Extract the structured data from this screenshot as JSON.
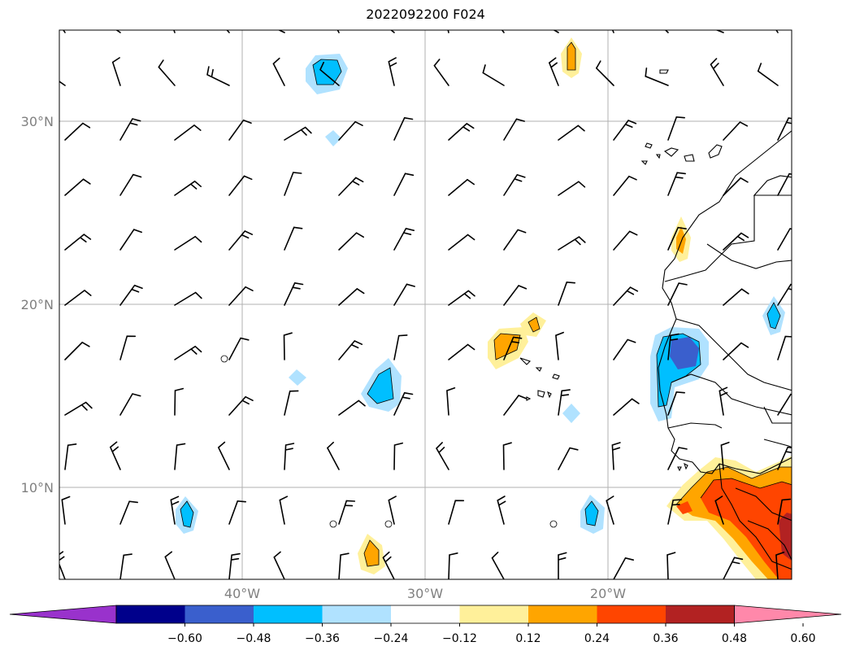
{
  "title": "2022092200 F024",
  "map": {
    "lon_range": [
      -50,
      -10
    ],
    "lat_range": [
      5,
      35
    ],
    "lat_ticks": [
      {
        "value": 30,
        "label": "30°N"
      },
      {
        "value": 20,
        "label": "20°N"
      },
      {
        "value": 10,
        "label": "10°N"
      }
    ],
    "lon_ticks": [
      {
        "value": -40,
        "label": "40°W"
      },
      {
        "value": -30,
        "label": "30°W"
      },
      {
        "value": -20,
        "label": "20°W"
      }
    ],
    "grid": true
  },
  "colorbar": {
    "extend": "both",
    "colors": [
      "#9932cc",
      "#00008b",
      "#3a5fcd",
      "#00bfff",
      "#b0e2ff",
      "#ffffff",
      "#fff09a",
      "#ffa500",
      "#ff4500",
      "#b22222",
      "#ff88aa"
    ],
    "labels": [
      "−0.60",
      "−0.48",
      "−0.36",
      "−0.24",
      "−0.12",
      "0.12",
      "0.24",
      "0.36",
      "0.48",
      "0.60"
    ]
  }
}
